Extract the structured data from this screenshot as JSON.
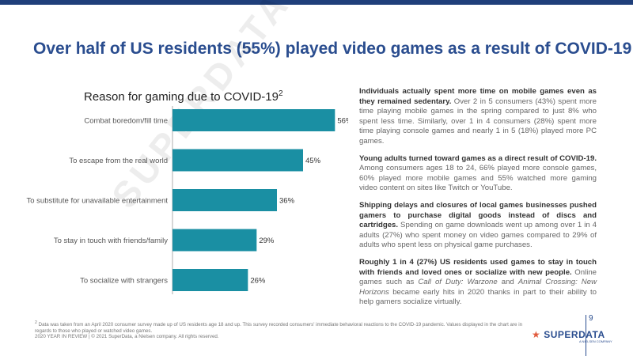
{
  "header": {
    "title": "Over half of US residents (55%) played video games as a result of COVID-19"
  },
  "chart_data": {
    "type": "bar",
    "orientation": "horizontal",
    "title": "Reason for gaming due to COVID-19",
    "title_footnote_marker": "2",
    "categories": [
      "Combat boredom/fill time",
      "To escape from the real world",
      "To substitute for unavailable entertainment",
      "To stay in touch with friends/family",
      "To socialize with strangers"
    ],
    "values": [
      56,
      45,
      36,
      29,
      26
    ],
    "value_labels": [
      "56%",
      "45%",
      "36%",
      "29%",
      "26%"
    ],
    "value_suffix": "%",
    "xlim": [
      0,
      60
    ],
    "bar_color": "#1a8fa3",
    "grid": false
  },
  "watermark": "SUPERDATA",
  "body": {
    "paragraphs": [
      {
        "lead": "Individuals actually spent more time on mobile games even as they remained sedentary.",
        "segments": [
          {
            "text": " Over 2 in 5 consumers (43%) spent more time playing mobile games in the spring compared to just 8% who spent less time. Similarly, over 1 in 4 consumers (28%) spent more time playing console games and nearly 1 in 5 (18%) played more PC games."
          }
        ]
      },
      {
        "lead": "Young adults turned toward games as a direct result of COVID-19.",
        "segments": [
          {
            "text": " Among consumers ages 18 to 24, 66% played more console games, 60% played more mobile games and 55% watched more gaming video content on sites like Twitch or YouTube."
          }
        ]
      },
      {
        "lead": "Shipping delays and closures of local games businesses pushed gamers to purchase digital goods instead of discs and cartridges.",
        "segments": [
          {
            "text": " Spending on game downloads went up among over 1 in 4 adults (27%) who spent money on video games compared to 29% of adults who spent less on physical game purchases."
          }
        ]
      },
      {
        "lead": "Roughly 1 in 4 (27%) US residents used games to stay in touch with friends and loved ones or socialize with new people.",
        "segments": [
          {
            "text": " Online games such as "
          },
          {
            "text": "Call of Duty: Warzone",
            "italic": true
          },
          {
            "text": " and "
          },
          {
            "text": "Animal Crossing: New Horizons",
            "italic": true
          },
          {
            "text": " became early hits in 2020 thanks in part to their ability to help gamers socialize virtually."
          }
        ]
      }
    ]
  },
  "footer": {
    "footnote_marker": "2",
    "footnote": "Data was taken from an April 2020 consumer survey made up of US residents age 18 and up. This survey recorded consumers' immediate behavioral reactions to the COVID-19 pandemic. Values displayed in the chart are in regards to those who played or watched video games.",
    "copyright": "2020 YEAR IN REVIEW | © 2021 SuperData, a Nielsen company. All rights reserved.",
    "page_number": "9",
    "logo_text": "SUPERDATA",
    "logo_subtext": "A NIELSEN COMPANY"
  },
  "colors": {
    "title": "#2a4d8f",
    "topbar": "#1f3f7a",
    "bar": "#1a8fa3",
    "logo_star": "#e15a3c"
  }
}
